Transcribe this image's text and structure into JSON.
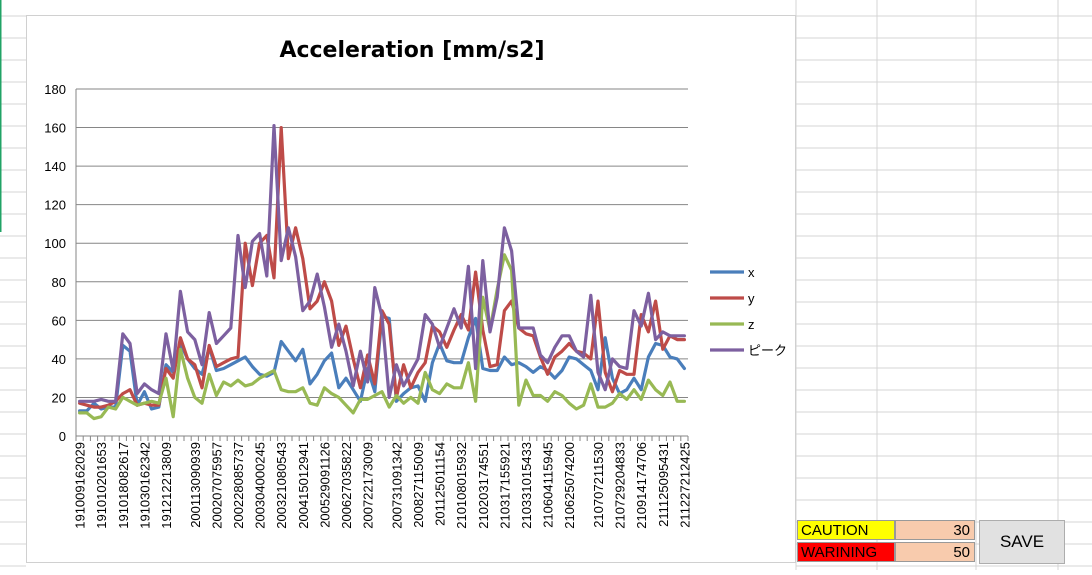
{
  "panel": {
    "caution_label": "CAUTION",
    "caution_value": "30",
    "warning_label": "WARINING",
    "warning_value": "50",
    "save_label": "SAVE"
  },
  "colors": {
    "x": "#4a7ebb",
    "y": "#be4b48",
    "z": "#98b954",
    "peak": "#7d60a0",
    "caution": "#ffff00",
    "warning": "#ff0000",
    "value_cell": "#f8cbad"
  },
  "chart_data": {
    "type": "line",
    "title": "Acceleration [mm/s2]",
    "xlabel": "",
    "ylabel": "",
    "ylim": [
      0,
      180
    ],
    "yticks": [
      0,
      20,
      40,
      60,
      80,
      100,
      120,
      140,
      160,
      180
    ],
    "grid": true,
    "legend": "right",
    "x_tick_labels": [
      "191009162029",
      "191010201653",
      "191018082617",
      "191030162342",
      "191212213809",
      "200113090939",
      "200207075957",
      "200228085737",
      "200304000245",
      "200321080543",
      "200415012941",
      "200529091126",
      "200627035822",
      "200722173009",
      "200731091342",
      "200827115009",
      "201125011154",
      "210108015932",
      "210203174551",
      "210317155921",
      "210331015433",
      "210604115945",
      "210625074200",
      "210707211530",
      "210729204833",
      "210914174706",
      "211125095431",
      "211227212425"
    ],
    "series": [
      {
        "name": "x",
        "values": [
          13,
          13,
          17,
          14,
          15,
          15,
          47,
          44,
          16,
          23,
          14,
          15,
          37,
          33,
          48,
          40,
          35,
          32,
          46,
          34,
          35,
          37,
          39,
          41,
          36,
          32,
          31,
          33,
          49,
          44,
          39,
          45,
          27,
          32,
          39,
          43,
          25,
          30,
          24,
          18,
          35,
          23,
          62,
          61,
          18,
          22,
          25,
          26,
          18,
          38,
          48,
          39,
          38,
          38,
          51,
          61,
          35,
          34,
          34,
          41,
          37,
          38,
          36,
          33,
          36,
          34,
          30,
          34,
          41,
          40,
          37,
          34,
          24,
          51,
          30,
          22,
          24,
          30,
          24,
          41,
          48,
          47,
          41,
          40,
          35
        ]
      },
      {
        "name": "y",
        "values": [
          17,
          16,
          15,
          15,
          16,
          18,
          22,
          24,
          16,
          17,
          16,
          16,
          35,
          30,
          51,
          40,
          37,
          25,
          47,
          36,
          38,
          40,
          41,
          100,
          78,
          100,
          104,
          82,
          160,
          92,
          108,
          92,
          66,
          70,
          80,
          70,
          47,
          57,
          40,
          25,
          42,
          27,
          65,
          58,
          20,
          37,
          25,
          33,
          38,
          57,
          54,
          46,
          55,
          63,
          55,
          85,
          55,
          36,
          37,
          65,
          70,
          56,
          53,
          52,
          41,
          32,
          41,
          44,
          48,
          44,
          43,
          40,
          70,
          33,
          23,
          34,
          32,
          32,
          63,
          54,
          70,
          45,
          52,
          50,
          50
        ]
      },
      {
        "name": "z",
        "values": [
          12,
          12,
          9,
          10,
          15,
          14,
          20,
          18,
          16,
          17,
          18,
          17,
          30,
          10,
          45,
          30,
          20,
          17,
          32,
          21,
          28,
          26,
          29,
          26,
          27,
          30,
          32,
          34,
          24,
          23,
          23,
          25,
          17,
          16,
          25,
          22,
          20,
          16,
          12,
          19,
          19,
          21,
          23,
          15,
          21,
          17,
          20,
          17,
          33,
          24,
          22,
          27,
          25,
          25,
          38,
          18,
          72,
          55,
          76,
          94,
          86,
          16,
          29,
          21,
          21,
          18,
          23,
          21,
          17,
          14,
          16,
          27,
          15,
          15,
          17,
          22,
          19,
          24,
          19,
          29,
          24,
          21,
          28,
          18,
          18
        ]
      },
      {
        "name": "ピーク",
        "values": [
          18,
          18,
          18,
          19,
          18,
          18,
          53,
          48,
          22,
          27,
          24,
          22,
          53,
          34,
          75,
          54,
          50,
          37,
          64,
          48,
          52,
          56,
          104,
          77,
          101,
          105,
          83,
          161,
          91,
          108,
          93,
          65,
          70,
          84,
          67,
          46,
          58,
          44,
          26,
          44,
          28,
          77,
          62,
          20,
          37,
          26,
          33,
          40,
          63,
          58,
          46,
          56,
          66,
          56,
          88,
          35,
          91,
          54,
          72,
          108,
          96,
          56,
          56,
          56,
          42,
          38,
          46,
          52,
          52,
          44,
          41,
          73,
          33,
          24,
          40,
          36,
          35,
          65,
          57,
          74,
          50,
          54,
          52,
          52,
          52
        ]
      }
    ]
  }
}
